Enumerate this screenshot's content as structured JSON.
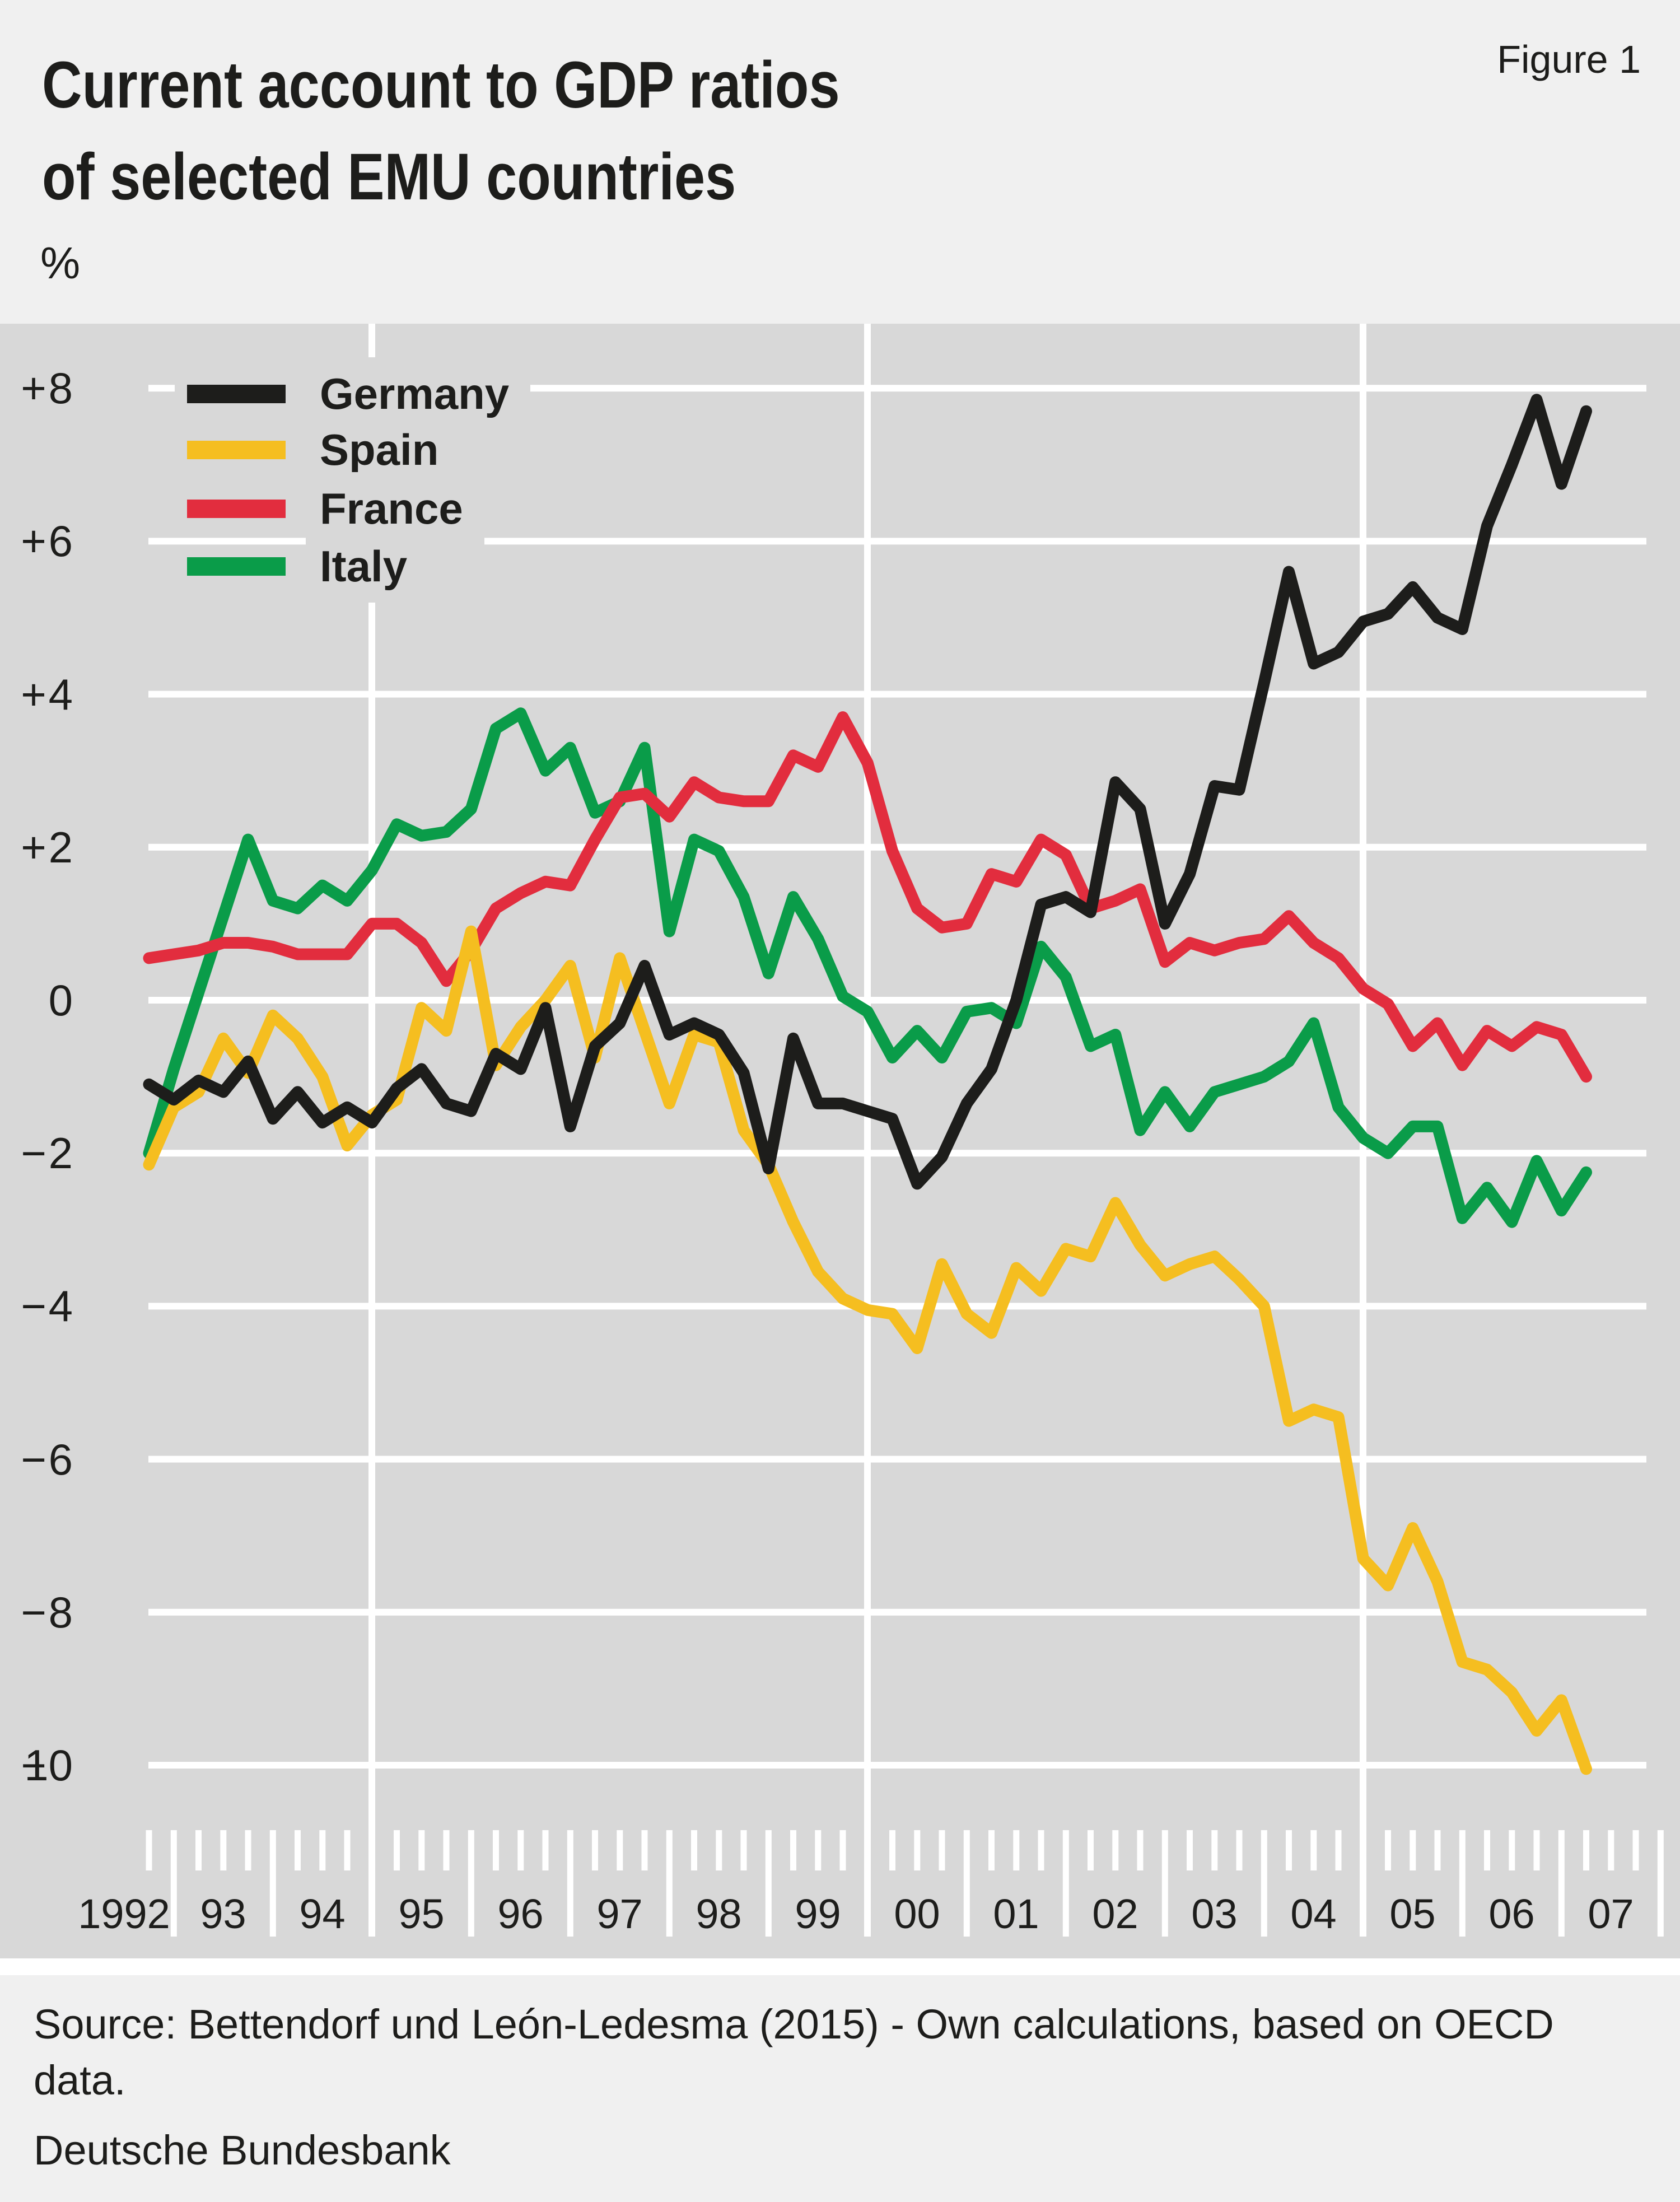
{
  "figure_label": "Figure 1",
  "title": {
    "line1": "Current account to GDP ratios",
    "line2": "of selected EMU countries"
  },
  "unit_label": "%",
  "footer": {
    "source_line1": "Source: Bettendorf und León-Ledesma (2015) - Own calculations, based on OECD",
    "source_line2": "data.",
    "publisher": "Deutsche Bundesbank"
  },
  "y_axis": {
    "ticks": [
      {
        "sign": "+",
        "num": "8"
      },
      {
        "sign": "+",
        "num": "6"
      },
      {
        "sign": "+",
        "num": "4"
      },
      {
        "sign": "+",
        "num": "2"
      },
      {
        "sign": "",
        "num": "0"
      },
      {
        "sign": "−",
        "num": "2"
      },
      {
        "sign": "−",
        "num": "4"
      },
      {
        "sign": "−",
        "num": "6"
      },
      {
        "sign": "−",
        "num": "8"
      },
      {
        "sign": "−",
        "num": "10"
      }
    ],
    "values": [
      8,
      6,
      4,
      2,
      0,
      -2,
      -4,
      -6,
      -8,
      -10
    ]
  },
  "chart_data": {
    "type": "line",
    "title": "Current account to GDP ratios of selected EMU countries",
    "unit": "%",
    "frequency": "quarterly",
    "period": "1992Q4-2007Q2",
    "x_tick_labels": [
      "1992",
      "93",
      "94",
      "95",
      "96",
      "97",
      "98",
      "99",
      "00",
      "01",
      "02",
      "03",
      "04",
      "05",
      "06",
      "07"
    ],
    "ylim": [
      -10,
      8
    ],
    "ytick_step": 2,
    "grid": true,
    "legend_position": "top-left",
    "plot_background": "#d8d8d8",
    "grid_color": "#ffffff",
    "series": [
      {
        "name": "Germany",
        "color": "#1d1d1b",
        "values": [
          -1.1,
          -1.3,
          -1.05,
          -1.2,
          -0.8,
          -1.55,
          -1.2,
          -1.6,
          -1.4,
          -1.6,
          -1.15,
          -0.9,
          -1.35,
          -1.45,
          -0.7,
          -0.9,
          -0.1,
          -1.65,
          -0.6,
          -0.3,
          0.45,
          -0.45,
          -0.3,
          -0.45,
          -0.95,
          -2.2,
          -0.5,
          -1.35,
          -1.35,
          -1.45,
          -1.55,
          -2.4,
          -2.05,
          -1.35,
          -0.9,
          0.0,
          1.25,
          1.35,
          1.15,
          2.85,
          2.5,
          1.0,
          1.65,
          2.8,
          2.75,
          4.15,
          5.6,
          4.4,
          4.55,
          4.95,
          5.05,
          5.4,
          5.0,
          4.85,
          6.2,
          7.0,
          7.85,
          6.75,
          7.7
        ]
      },
      {
        "name": "Spain",
        "color": "#f5be20",
        "values": [
          -2.15,
          -1.4,
          -1.2,
          -0.5,
          -0.95,
          -0.2,
          -0.5,
          -1.0,
          -1.9,
          -1.5,
          -1.3,
          -0.1,
          -0.4,
          0.9,
          -0.85,
          -0.35,
          0.0,
          0.45,
          -0.75,
          0.55,
          -0.4,
          -1.35,
          -0.45,
          -0.55,
          -1.7,
          -2.15,
          -2.9,
          -3.55,
          -3.9,
          -4.05,
          -4.1,
          -4.55,
          -3.45,
          -4.1,
          -4.35,
          -3.5,
          -3.8,
          -3.25,
          -3.35,
          -2.65,
          -3.2,
          -3.6,
          -3.45,
          -3.35,
          -3.65,
          -4.0,
          -5.5,
          -5.35,
          -5.45,
          -7.3,
          -7.65,
          -6.9,
          -7.6,
          -8.65,
          -8.75,
          -9.05,
          -9.55,
          -9.15,
          -10.05
        ]
      },
      {
        "name": "France",
        "color": "#e22d3e",
        "values": [
          0.55,
          0.6,
          0.65,
          0.75,
          0.75,
          0.7,
          0.6,
          0.6,
          0.6,
          1.0,
          1.0,
          0.75,
          0.25,
          0.65,
          1.2,
          1.4,
          1.55,
          1.5,
          2.1,
          2.65,
          2.7,
          2.4,
          2.85,
          2.65,
          2.6,
          2.6,
          3.2,
          3.05,
          3.7,
          3.1,
          1.95,
          1.2,
          0.95,
          1.0,
          1.65,
          1.55,
          2.1,
          1.9,
          1.2,
          1.3,
          1.45,
          0.5,
          0.75,
          0.65,
          0.75,
          0.8,
          1.1,
          0.75,
          0.55,
          0.15,
          -0.05,
          -0.6,
          -0.3,
          -0.85,
          -0.4,
          -0.6,
          -0.35,
          -0.45,
          -1.0
        ]
      },
      {
        "name": "Italy",
        "color": "#0a9c49",
        "values": [
          -2.0,
          -0.9,
          0.1,
          1.1,
          2.1,
          1.3,
          1.2,
          1.5,
          1.3,
          1.7,
          2.3,
          2.15,
          2.2,
          2.5,
          3.55,
          3.75,
          3.0,
          3.3,
          2.45,
          2.6,
          3.3,
          0.9,
          2.1,
          1.95,
          1.35,
          0.35,
          1.35,
          0.8,
          0.05,
          -0.15,
          -0.75,
          -0.4,
          -0.75,
          -0.15,
          -0.1,
          -0.3,
          0.7,
          0.3,
          -0.6,
          -0.45,
          -1.7,
          -1.2,
          -1.65,
          -1.2,
          -1.1,
          -1.0,
          -0.8,
          -0.3,
          -1.4,
          -1.8,
          -2.0,
          -1.65,
          -1.65,
          -2.85,
          -2.45,
          -2.9,
          -2.1,
          -2.75,
          -2.25
        ]
      }
    ]
  }
}
